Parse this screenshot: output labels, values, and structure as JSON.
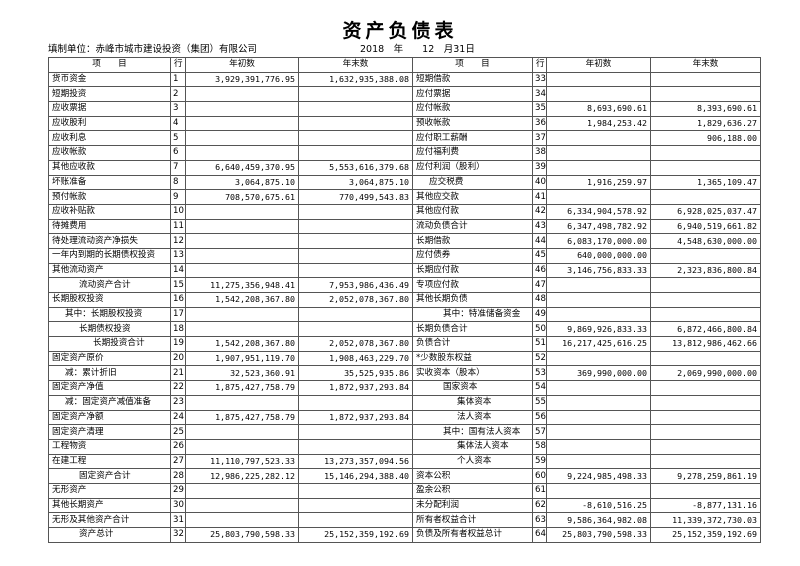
{
  "header": {
    "title": "资产负债表",
    "unit": "填制单位：赤峰市城市建设投资（集团）有限公司",
    "date": "2018　年　　12　月31日"
  },
  "table": {
    "columns": [
      "项　　目",
      "行",
      "年初数",
      "年末数",
      "项　　目",
      "行",
      "年初数",
      "年末数"
    ],
    "rows": [
      [
        "货币资金",
        "1",
        "3,929,391,776.95",
        "1,632,935,388.08",
        "短期借款",
        "33",
        null,
        null
      ],
      [
        "短期投资",
        "2",
        null,
        null,
        "应付票据",
        "34",
        null,
        null
      ],
      [
        "应收票据",
        "3",
        null,
        null,
        "应付帐款",
        "35",
        "8,693,690.61",
        "8,393,690.61"
      ],
      [
        "应收股利",
        "4",
        null,
        null,
        "预收帐款",
        "36",
        "1,984,253.42",
        "1,829,636.27"
      ],
      [
        "应收利息",
        "5",
        null,
        null,
        "应付职工薪酬",
        "37",
        null,
        "906,188.00"
      ],
      [
        "应收帐款",
        "6",
        null,
        null,
        "应付福利费",
        "38",
        null,
        null
      ],
      [
        "其他应收款",
        "7",
        "6,640,459,370.95",
        "5,553,616,379.68",
        "应付利润（股利）",
        "39",
        null,
        null
      ],
      [
        "坏账准备",
        "8",
        "3,064,875.10",
        "3,064,875.10",
        "应交税费",
        "40",
        "1,916,259.97",
        "1,365,109.47"
      ],
      [
        "预付帐款",
        "9",
        "708,570,675.61",
        "770,499,543.83",
        "其他应交款",
        "41",
        null,
        null
      ],
      [
        "应收补贴款",
        "10",
        null,
        null,
        "其他应付款",
        "42",
        "6,334,904,578.92",
        "6,928,025,037.47"
      ],
      [
        "待摊费用",
        "11",
        null,
        null,
        "流动负债合计",
        "43",
        "6,347,498,782.92",
        "6,940,519,661.82"
      ],
      [
        "待处理流动资产净损失",
        "12",
        null,
        null,
        "长期借款",
        "44",
        "6,083,170,000.00",
        "4,548,630,000.00"
      ],
      [
        "一年内到期的长期债权投资",
        "13",
        null,
        null,
        "应付债券",
        "45",
        "640,000,000.00",
        null
      ],
      [
        "其他流动资产",
        "14",
        null,
        null,
        "长期应付款",
        "46",
        "3,146,756,833.33",
        "2,323,836,800.84"
      ],
      [
        "流动资产合计",
        "15",
        "11,275,356,948.41",
        "7,953,986,436.49",
        "专项应付款",
        "47",
        null,
        null
      ],
      [
        "长期股权投资",
        "16",
        "1,542,208,367.80",
        "2,052,078,367.80",
        "其他长期负债",
        "48",
        null,
        null
      ],
      [
        "其中：长期股权投资",
        "17",
        null,
        null,
        "其中：特准储备资金",
        "49",
        null,
        null
      ],
      [
        "长期债权投资",
        "18",
        null,
        null,
        "长期负债合计",
        "50",
        "9,869,926,833.33",
        "6,872,466,800.84"
      ],
      [
        "长期投资合计",
        "19",
        "1,542,208,367.80",
        "2,052,078,367.80",
        "负债合计",
        "51",
        "16,217,425,616.25",
        "13,812,986,462.66"
      ],
      [
        "固定资产原价",
        "20",
        "1,907,951,119.70",
        "1,908,463,229.70",
        "*少数股东权益",
        "52",
        null,
        null
      ],
      [
        "减：累计折旧",
        "21",
        "32,523,360.91",
        "35,525,935.86",
        "实收资本（股本）",
        "53",
        "369,990,000.00",
        "2,069,990,000.00"
      ],
      [
        "固定资产净值",
        "22",
        "1,875,427,758.79",
        "1,872,937,293.84",
        "国家资本",
        "54",
        null,
        null
      ],
      [
        "减：固定资产减值准备",
        "23",
        null,
        null,
        "集体资本",
        "55",
        null,
        null
      ],
      [
        "固定资产净额",
        "24",
        "1,875,427,758.79",
        "1,872,937,293.84",
        "法人资本",
        "56",
        null,
        null
      ],
      [
        "固定资产清理",
        "25",
        null,
        null,
        "其中：国有法人资本",
        "57",
        null,
        null
      ],
      [
        "工程物资",
        "26",
        null,
        null,
        "集体法人资本",
        "58",
        null,
        null
      ],
      [
        "在建工程",
        "27",
        "11,110,797,523.33",
        "13,273,357,094.56",
        "个人资本",
        "59",
        null,
        null
      ],
      [
        "固定资产合计",
        "28",
        "12,986,225,282.12",
        "15,146,294,388.40",
        "资本公积",
        "60",
        "9,224,985,498.33",
        "9,278,259,861.19"
      ],
      [
        "无形资产",
        "29",
        null,
        null,
        "盈余公积",
        "61",
        null,
        null
      ],
      [
        "其他长期资产",
        "30",
        null,
        null,
        "未分配利润",
        "62",
        "-8,610,516.25",
        "-8,877,131.16"
      ],
      [
        "无形及其他资产合计",
        "31",
        null,
        null,
        "所有者权益合计",
        "63",
        "9,586,364,982.08",
        "11,339,372,730.03"
      ],
      [
        "资产总计",
        "32",
        "25,803,790,598.33",
        "25,152,359,192.69",
        "负债及所有者权益总计",
        "64",
        "25,803,790,598.33",
        "25,152,359,192.69"
      ]
    ]
  }
}
